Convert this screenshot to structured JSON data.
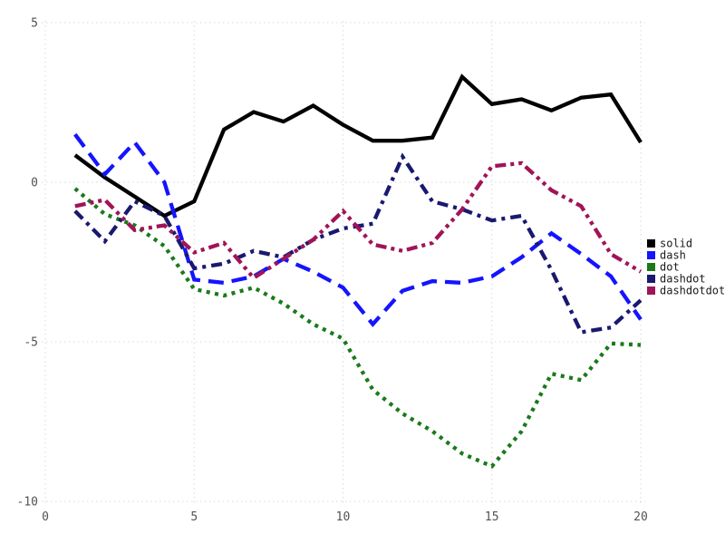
{
  "figure": {
    "background": "#ffffff",
    "grid_color": "#d9d9d9",
    "tick_label_color": "#575052",
    "legend_text_color": "#1a1a1a"
  },
  "chart_data": {
    "type": "line",
    "title": "",
    "xlabel": "",
    "ylabel": "",
    "xlim": [
      0,
      20
    ],
    "ylim": [
      -10,
      5
    ],
    "x_ticks": [
      "0",
      "5",
      "10",
      "15",
      "20"
    ],
    "x_tick_values": [
      0,
      5,
      10,
      15,
      20
    ],
    "y_ticks": [
      "5",
      "0",
      "-5",
      "-10"
    ],
    "y_tick_values": [
      5,
      0,
      -5,
      -10
    ],
    "grid": "dotted",
    "legend_position": "right-outside",
    "x": [
      1,
      2,
      3,
      4,
      5,
      6,
      7,
      8,
      9,
      10,
      11,
      12,
      13,
      14,
      15,
      16,
      17,
      18,
      19,
      20
    ],
    "series": [
      {
        "name": "solid",
        "color": "#000000",
        "line_style": "solid",
        "values": [
          0.85,
          0.15,
          -0.45,
          -1.05,
          -0.6,
          1.65,
          2.2,
          1.9,
          2.4,
          1.8,
          1.3,
          1.3,
          1.4,
          3.3,
          2.45,
          2.6,
          2.25,
          2.65,
          2.75,
          1.25
        ]
      },
      {
        "name": "dash",
        "color": "#1414ff",
        "line_style": "dash",
        "values": [
          1.5,
          0.25,
          1.25,
          0.0,
          -3.05,
          -3.15,
          -2.95,
          -2.4,
          -2.8,
          -3.3,
          -4.45,
          -3.4,
          -3.1,
          -3.15,
          -2.95,
          -2.35,
          -1.6,
          -2.25,
          -2.95,
          -4.3
        ]
      },
      {
        "name": "dot",
        "color": "#1a7a1a",
        "line_style": "dot",
        "values": [
          -0.2,
          -1.0,
          -1.35,
          -2.0,
          -3.35,
          -3.55,
          -3.3,
          -3.8,
          -4.45,
          -4.9,
          -6.5,
          -7.25,
          -7.8,
          -8.5,
          -8.9,
          -7.8,
          -6.0,
          -6.2,
          -5.05,
          -5.1
        ]
      },
      {
        "name": "dashdot",
        "color": "#191970",
        "line_style": "dashdot",
        "values": [
          -0.9,
          -1.85,
          -0.6,
          -1.05,
          -2.7,
          -2.55,
          -2.15,
          -2.35,
          -1.8,
          -1.45,
          -1.3,
          0.8,
          -0.6,
          -0.85,
          -1.2,
          -1.05,
          -2.75,
          -4.7,
          -4.55,
          -3.7
        ]
      },
      {
        "name": "dashdotdot",
        "color": "#a01458",
        "line_style": "dashdotdot",
        "values": [
          -0.75,
          -0.55,
          -1.5,
          -1.35,
          -2.2,
          -1.9,
          -3.0,
          -2.4,
          -1.8,
          -0.9,
          -1.95,
          -2.15,
          -1.9,
          -0.85,
          0.5,
          0.6,
          -0.25,
          -0.75,
          -2.25,
          -2.8
        ]
      }
    ],
    "legend": {
      "items": [
        {
          "label": "solid",
          "color": "#000000"
        },
        {
          "label": "dash",
          "color": "#1414ff"
        },
        {
          "label": "dot",
          "color": "#1a7a1a"
        },
        {
          "label": "dashdot",
          "color": "#191970"
        },
        {
          "label": "dashdotdot",
          "color": "#a01458"
        }
      ]
    }
  }
}
